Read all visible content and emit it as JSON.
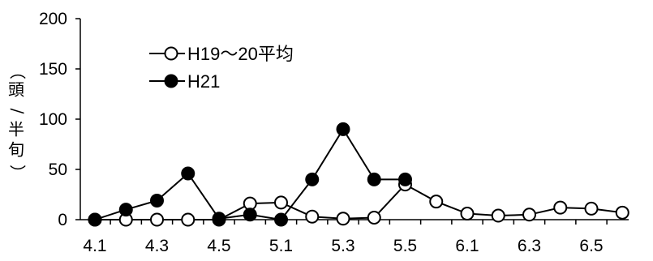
{
  "chart_data": {
    "type": "line",
    "categories": [
      "4.1",
      "4.2",
      "4.3",
      "4.4",
      "4.5",
      "4.6",
      "5.1",
      "5.2",
      "5.3",
      "5.4",
      "5.5",
      "5.6",
      "6.1",
      "6.2",
      "6.3",
      "6.4",
      "6.5",
      "6.6"
    ],
    "x_tick_labels": [
      "4.1",
      "4.3",
      "4.5",
      "5.1",
      "5.3",
      "5.5",
      "6.1",
      "6.3",
      "6.5"
    ],
    "ylabel_chars": [
      "（",
      "頭",
      "/",
      "半",
      "旬",
      "）"
    ],
    "ylim": [
      0,
      200
    ],
    "yticks": [
      0,
      50,
      100,
      150,
      200
    ],
    "grid": false,
    "legend_position": "top-left",
    "series": [
      {
        "name": "H19～20平均",
        "marker": "open-circle",
        "color": "#000000",
        "values": [
          0,
          0,
          0,
          0,
          0,
          16,
          17,
          3,
          1,
          2,
          35,
          18,
          6,
          4,
          5,
          12,
          11,
          7
        ]
      },
      {
        "name": "H21",
        "marker": "filled-circle",
        "color": "#000000",
        "values": [
          0,
          10,
          19,
          46,
          1,
          5,
          0,
          40,
          90,
          40,
          40,
          null,
          null,
          null,
          null,
          null,
          null,
          null
        ]
      }
    ]
  }
}
